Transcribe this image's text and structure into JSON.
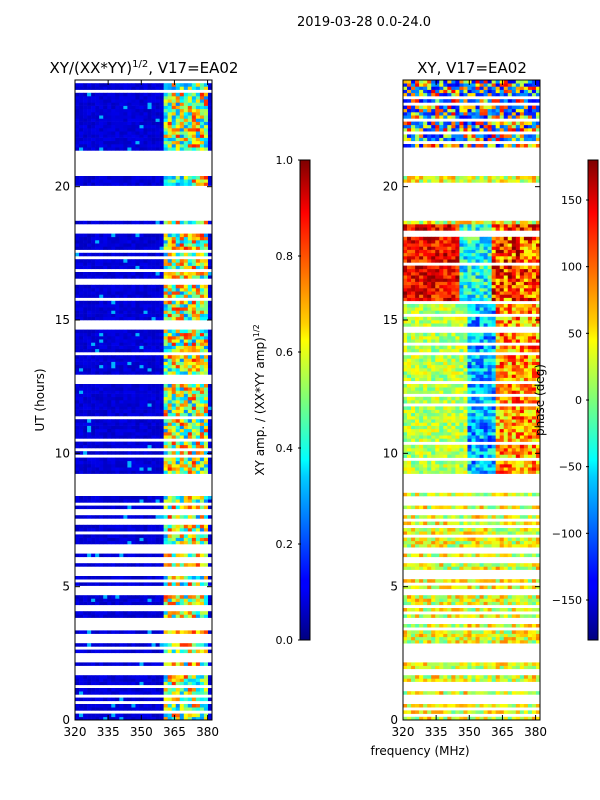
{
  "suptitle": "2019-03-28 0.0-24.0",
  "chart_data": [
    {
      "type": "heatmap",
      "title_prefix": "XY/(XX*YY)",
      "title_exponent": "1/2",
      "title_suffix": ", V17=EA02",
      "xlabel": "",
      "ylabel": "UT (hours)",
      "xlim": [
        320,
        382
      ],
      "ylim": [
        0,
        24
      ],
      "xticks": [
        320,
        335,
        350,
        365,
        380
      ],
      "yticks": [
        0,
        5,
        10,
        15,
        20
      ],
      "background_value": 0.0,
      "rfi_band_MHz": [
        361,
        381
      ],
      "data_gaps_hours": [
        [
          20.4,
          21.4
        ],
        [
          18.7,
          19.9
        ],
        [
          8.6,
          9.2
        ]
      ],
      "sparse_below_hours": 8.6,
      "colorbar": {
        "label_prefix": "XY amp. / (XX*YY amp)",
        "label_exponent": "1/2",
        "range": [
          0.0,
          1.0
        ],
        "ticks": [
          "0.0",
          "0.2",
          "0.4",
          "0.6",
          "0.8",
          "1.0"
        ],
        "colormap": "jet"
      }
    },
    {
      "type": "heatmap",
      "title": "XY, V17=EA02",
      "xlabel": "frequency (MHz)",
      "ylabel": "",
      "xlim": [
        320,
        382
      ],
      "ylim": [
        0,
        24
      ],
      "xticks": [
        320,
        335,
        350,
        365,
        380
      ],
      "yticks": [
        0,
        5,
        10,
        15,
        20
      ],
      "data_gaps_hours": [
        [
          20.4,
          21.4
        ],
        [
          18.7,
          19.9
        ],
        [
          8.6,
          9.2
        ]
      ],
      "colorbar": {
        "label": "phase (deg)",
        "range": [
          -180,
          180
        ],
        "ticks": [
          "150",
          "100",
          "50",
          "0",
          "−50",
          "−100",
          "−150"
        ],
        "colormap": "jet"
      }
    }
  ]
}
